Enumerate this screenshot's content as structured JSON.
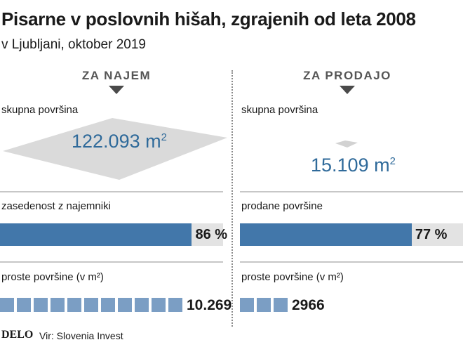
{
  "title": "Pisarne v poslovnih hišah, zgrajenih od leta 2008",
  "subtitle": "v Ljubljani, oktober 2019",
  "logo": "DELO",
  "source": "Vir: Slovenia Invest",
  "colors": {
    "bar": "#4277aa",
    "track": "#e3e3e3",
    "square": "#7b9ec4",
    "big_number": "#2f6a9a",
    "shape": "#dadada"
  },
  "chart_data": {
    "type": "table",
    "columns": [
      {
        "heading": "ZA NAJEM",
        "area_label": "skupna površina",
        "area_value": 122093,
        "area_text": "122.093 m",
        "area_unit_sup": "2",
        "share_label": "zasedenost z najemniki",
        "share_percent": 86,
        "share_text": "86 %",
        "free_label": "proste površine (v m²)",
        "free_value": 10269,
        "free_text": "10.269",
        "free_squares": 11
      },
      {
        "heading": "ZA PRODAJO",
        "area_label": "skupna površina",
        "area_value": 15109,
        "area_text": "15.109 m",
        "area_unit_sup": "2",
        "share_label": "prodane površine",
        "share_percent": 77,
        "share_text": "77 %",
        "free_label": "proste površine (v m²)",
        "free_value": 2966,
        "free_text": "2966",
        "free_squares": 3
      }
    ]
  }
}
